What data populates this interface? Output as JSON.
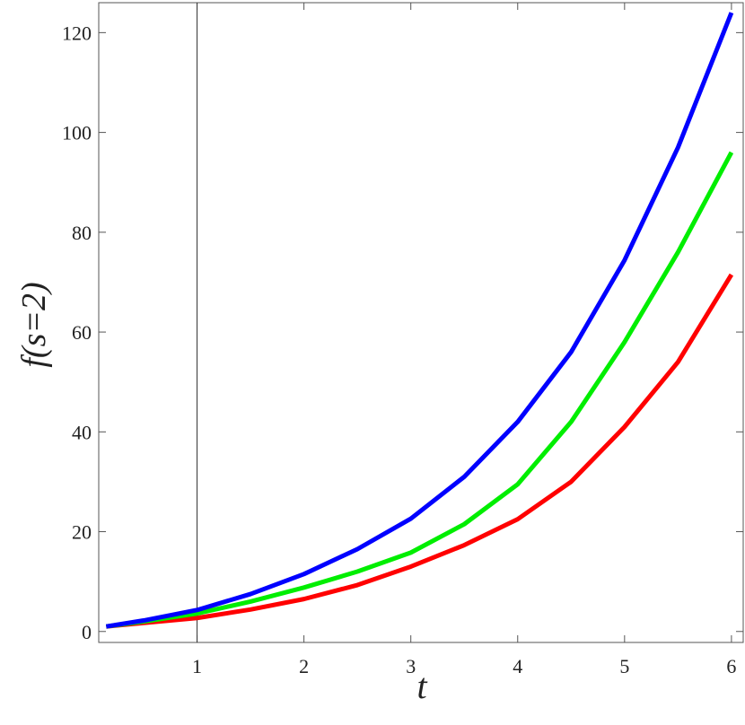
{
  "chart_data": {
    "type": "line",
    "x_label": "t",
    "y_label": "f(s=2)",
    "x": [
      0.15,
      0.5,
      1,
      1.5,
      2,
      2.5,
      3,
      3.5,
      4,
      4.5,
      5,
      5.5,
      6
    ],
    "series": [
      {
        "color": "#ff0000",
        "values": [
          1,
          1.7,
          2.7,
          4.4,
          6.5,
          9.3,
          13,
          17.3,
          22.5,
          30,
          41,
          54,
          71.5
        ]
      },
      {
        "color": "#00ee00",
        "values": [
          1,
          2,
          3.6,
          6,
          8.8,
          12,
          15.8,
          21.5,
          29.5,
          42,
          58,
          76,
          96
        ]
      },
      {
        "color": "#0000ff",
        "values": [
          1,
          2.2,
          4.3,
          7.5,
          11.5,
          16.5,
          22.6,
          31,
          42,
          56,
          74.4,
          97,
          124
        ]
      }
    ],
    "xlim": [
      0.08,
      6.11
    ],
    "ylim": [
      -2.2,
      126
    ],
    "xticks": [
      1,
      2,
      3,
      4,
      5,
      6
    ],
    "yticks": [
      0,
      20,
      40,
      60,
      80,
      100,
      120
    ],
    "vertical_line": 1
  }
}
